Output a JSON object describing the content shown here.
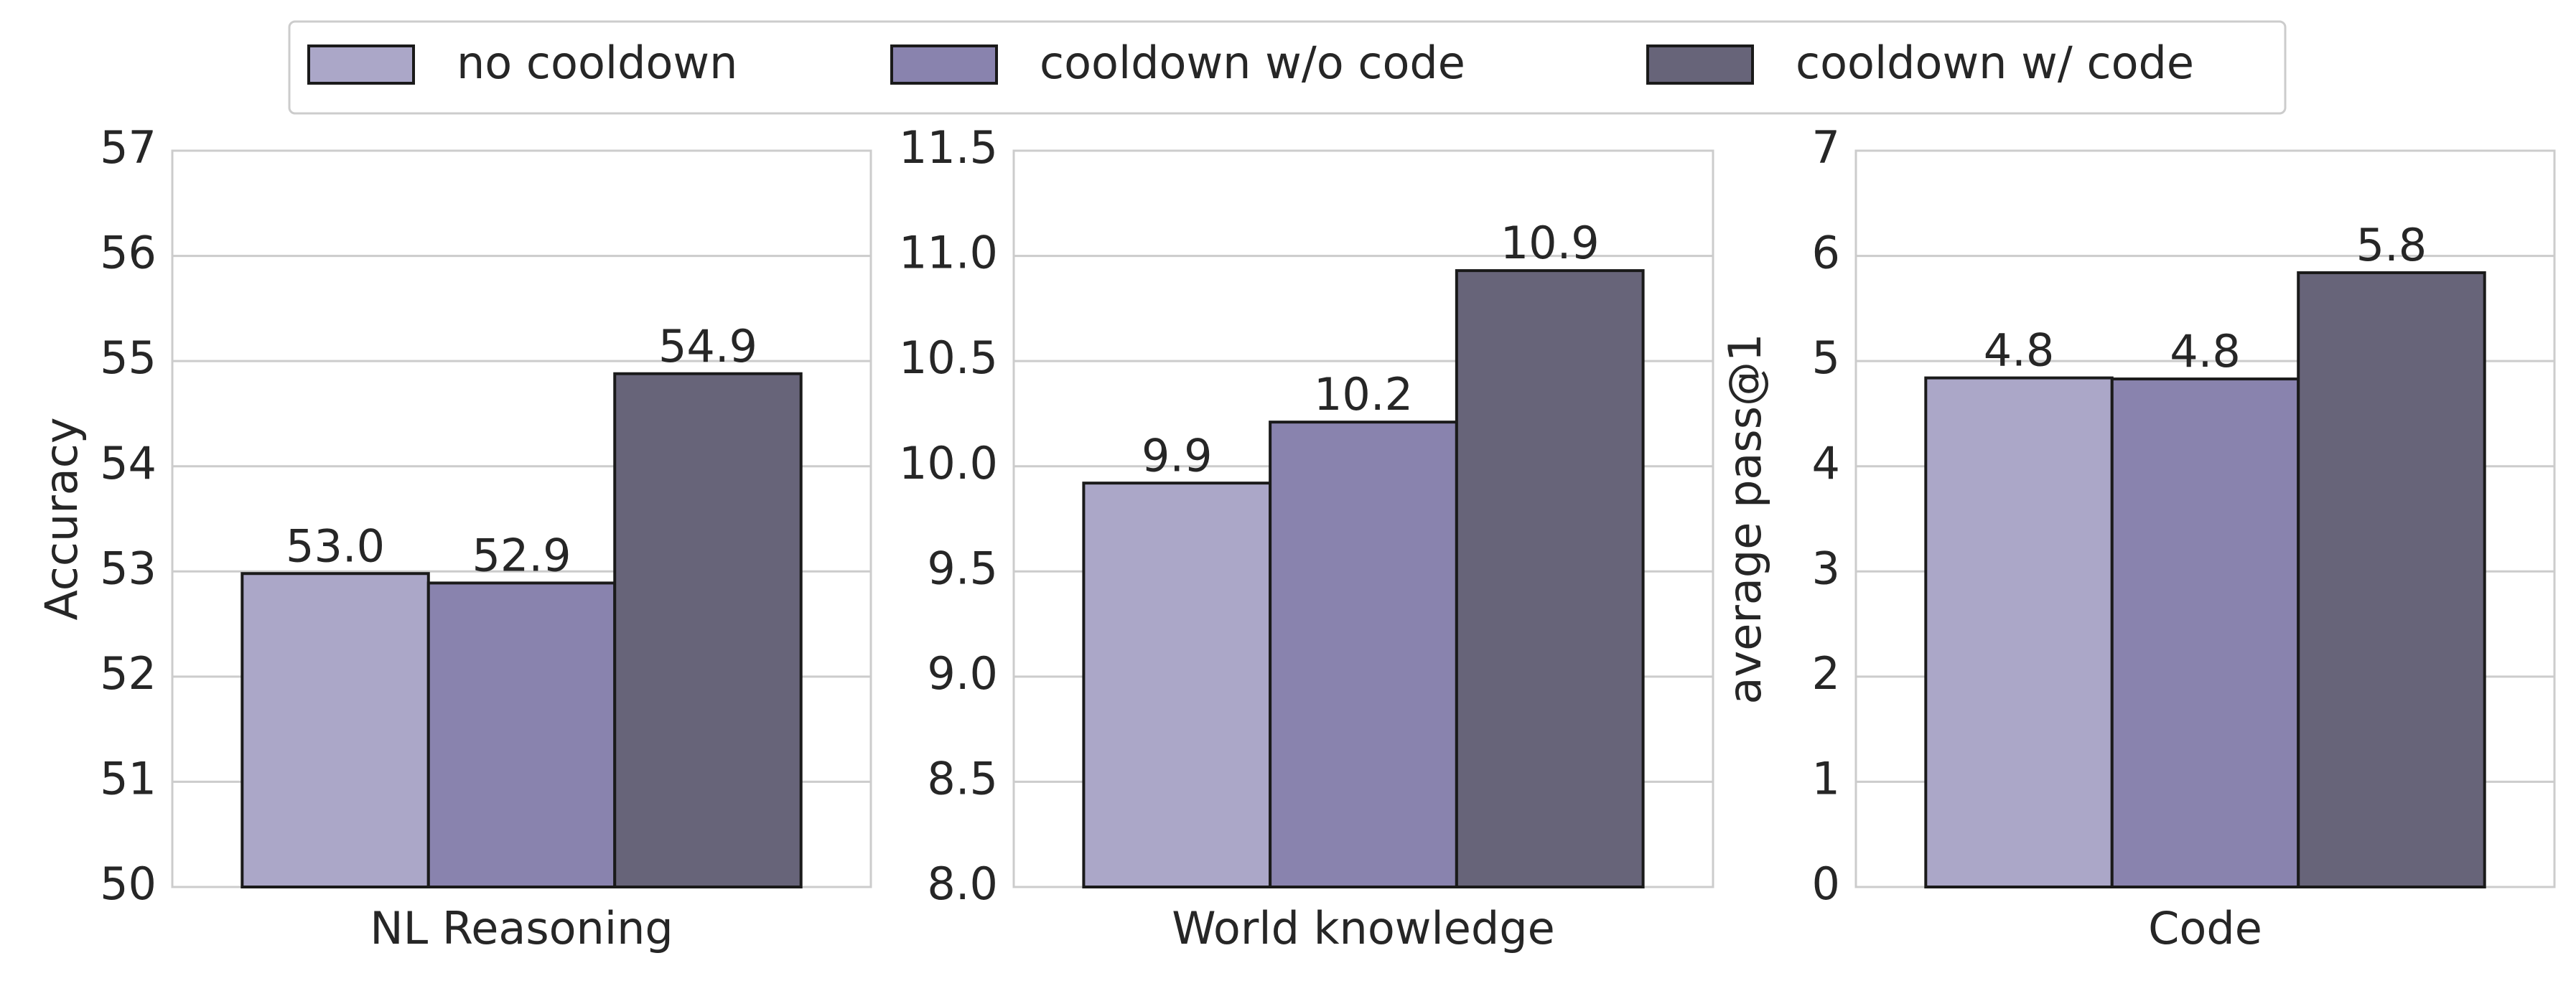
{
  "chart_data": {
    "type": "bar",
    "categories": [
      "NL Reasoning",
      "World knowledge",
      "Code"
    ],
    "series": [
      {
        "name": "no cooldown",
        "color": "#aba7c8",
        "values": [
          52.98,
          9.92,
          4.84
        ],
        "value_labels": [
          "53.0",
          "9.9",
          "4.8"
        ]
      },
      {
        "name": "cooldown w/o code",
        "color": "#8983ae",
        "values": [
          52.89,
          10.21,
          4.83
        ],
        "value_labels": [
          "52.9",
          "10.2",
          "4.8"
        ]
      },
      {
        "name": "cooldown w/ code",
        "color": "#676479",
        "values": [
          54.88,
          10.93,
          5.84
        ],
        "value_labels": [
          "54.9",
          "10.9",
          "5.8"
        ]
      }
    ],
    "panels": [
      {
        "ylabel": "Accuracy",
        "ylim": [
          50,
          57
        ],
        "yticks": [
          50,
          51,
          52,
          53,
          54,
          55,
          56,
          57
        ]
      },
      {
        "ylim": [
          8,
          11.5
        ],
        "yticks": [
          {
            "value": 8,
            "label": "8.0"
          },
          8.5,
          {
            "value": 9,
            "label": "9.0"
          },
          9.5,
          {
            "value": 10,
            "label": "10.0"
          },
          10.5,
          {
            "value": 11,
            "label": "11.0"
          },
          11.5
        ]
      },
      {
        "ylabel": "average pass@1",
        "ylim": [
          0,
          7
        ],
        "yticks": [
          0,
          1,
          2,
          3,
          4,
          5,
          6,
          7
        ]
      }
    ],
    "grid": true,
    "legend": "top"
  }
}
